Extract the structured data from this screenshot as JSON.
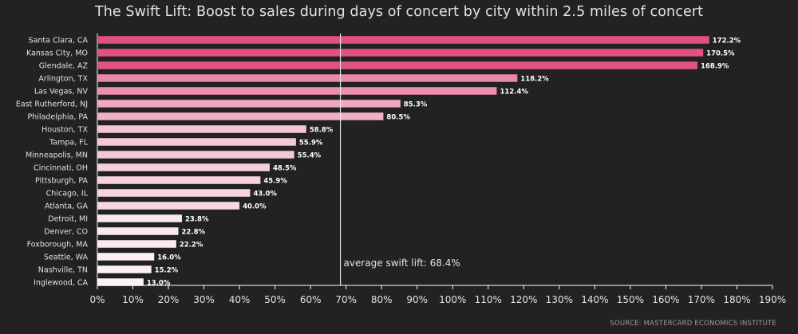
{
  "chart_data": {
    "type": "bar",
    "orientation": "horizontal",
    "title": "The Swift Lift: Boost to sales during days of concert by city within 2.5 miles of concert",
    "source": "SOURCE: MASTERCARD ECONOMICS INSTITUTE",
    "categories": [
      "Santa Clara, CA",
      "Kansas City, MO",
      "Glendale, AZ",
      "Arlington, TX",
      "Las Vegas, NV",
      "East Rutherford, NJ",
      "Philadelphia, PA",
      "Houston, TX",
      "Tampa, FL",
      "Minneapolis, MN",
      "Cincinnati, OH",
      "Pittsburgh, PA",
      "Chicago, IL",
      "Atlanta, GA",
      "Detroit, MI",
      "Denver, CO",
      "Foxborough, MA",
      "Seattle, WA",
      "Nashville, TN",
      "Inglewood, CA"
    ],
    "values": [
      172.2,
      170.5,
      168.9,
      118.2,
      112.4,
      85.3,
      80.5,
      58.8,
      55.9,
      55.4,
      48.5,
      45.9,
      43.0,
      40.0,
      23.8,
      22.8,
      22.2,
      16.0,
      15.2,
      13.0
    ],
    "data_labels": [
      "172.2%",
      "170.5%",
      "168.9%",
      "118.2%",
      "112.4%",
      "85.3%",
      "80.5%",
      "58.8%",
      "55.9%",
      "55.4%",
      "48.5%",
      "45.9%",
      "43.0%",
      "40.0%",
      "23.8%",
      "22.8%",
      "22.2%",
      "16.0%",
      "15.2%",
      "13.0%"
    ],
    "x_ticks": [
      0,
      10,
      20,
      30,
      40,
      50,
      60,
      70,
      80,
      90,
      100,
      110,
      120,
      130,
      140,
      150,
      160,
      170,
      180,
      190
    ],
    "x_tick_labels": [
      "0%",
      "10%",
      "20%",
      "30%",
      "40%",
      "50%",
      "60%",
      "70%",
      "80%",
      "90%",
      "100%",
      "110%",
      "120%",
      "130%",
      "140%",
      "150%",
      "160%",
      "170%",
      "180%",
      "190%"
    ],
    "xlim": [
      0,
      190
    ],
    "reference_line": {
      "value": 68.4,
      "label": "average swift lift: 68.4%"
    },
    "colors": {
      "bar_high": "#e0517f",
      "bar_low": "#fdf3f6",
      "background": "#222222",
      "text": "#e2e2e2",
      "reference_line": "#e6e6e6"
    },
    "grid": false,
    "legend": "none"
  }
}
